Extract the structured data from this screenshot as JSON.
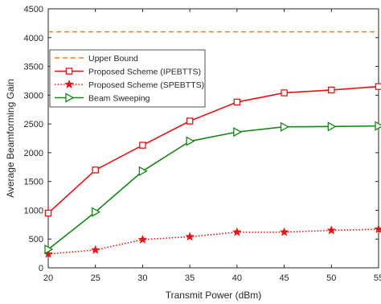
{
  "chart_data": {
    "type": "line",
    "title": "",
    "xlabel": "Transmit Power (dBm)",
    "ylabel": "Average Beamforming Gain",
    "xlim": [
      20,
      55
    ],
    "ylim": [
      0,
      4500
    ],
    "x": [
      20,
      25,
      30,
      35,
      40,
      45,
      50,
      55
    ],
    "xticks": [
      "20",
      "25",
      "30",
      "35",
      "40",
      "45",
      "50",
      "55"
    ],
    "yticks": [
      "0",
      "500",
      "1000",
      "1500",
      "2000",
      "2500",
      "3000",
      "3500",
      "4000",
      "4500"
    ],
    "grid": false,
    "legend_position": "center-left",
    "series": [
      {
        "name": "Upper Bound",
        "values": [
          4100,
          4100,
          4100,
          4100,
          4100,
          4100,
          4100,
          4100
        ],
        "color": "#ff7f0e",
        "style": "dashed",
        "marker": "none"
      },
      {
        "name": "Proposed Scheme (IPEBTTS)",
        "values": [
          950,
          1700,
          2130,
          2550,
          2880,
          3040,
          3090,
          3150
        ],
        "color": "#ee1111",
        "style": "solid",
        "marker": "square"
      },
      {
        "name": "Proposed Scheme (SPEBTTS)",
        "values": [
          240,
          310,
          490,
          540,
          620,
          620,
          650,
          670
        ],
        "color": "#ee1111",
        "style": "dotted",
        "marker": "star"
      },
      {
        "name": "Beam Sweeping",
        "values": [
          320,
          970,
          1680,
          2200,
          2360,
          2450,
          2455,
          2465
        ],
        "color": "#118811",
        "style": "solid",
        "marker": "triangle-right"
      }
    ]
  }
}
